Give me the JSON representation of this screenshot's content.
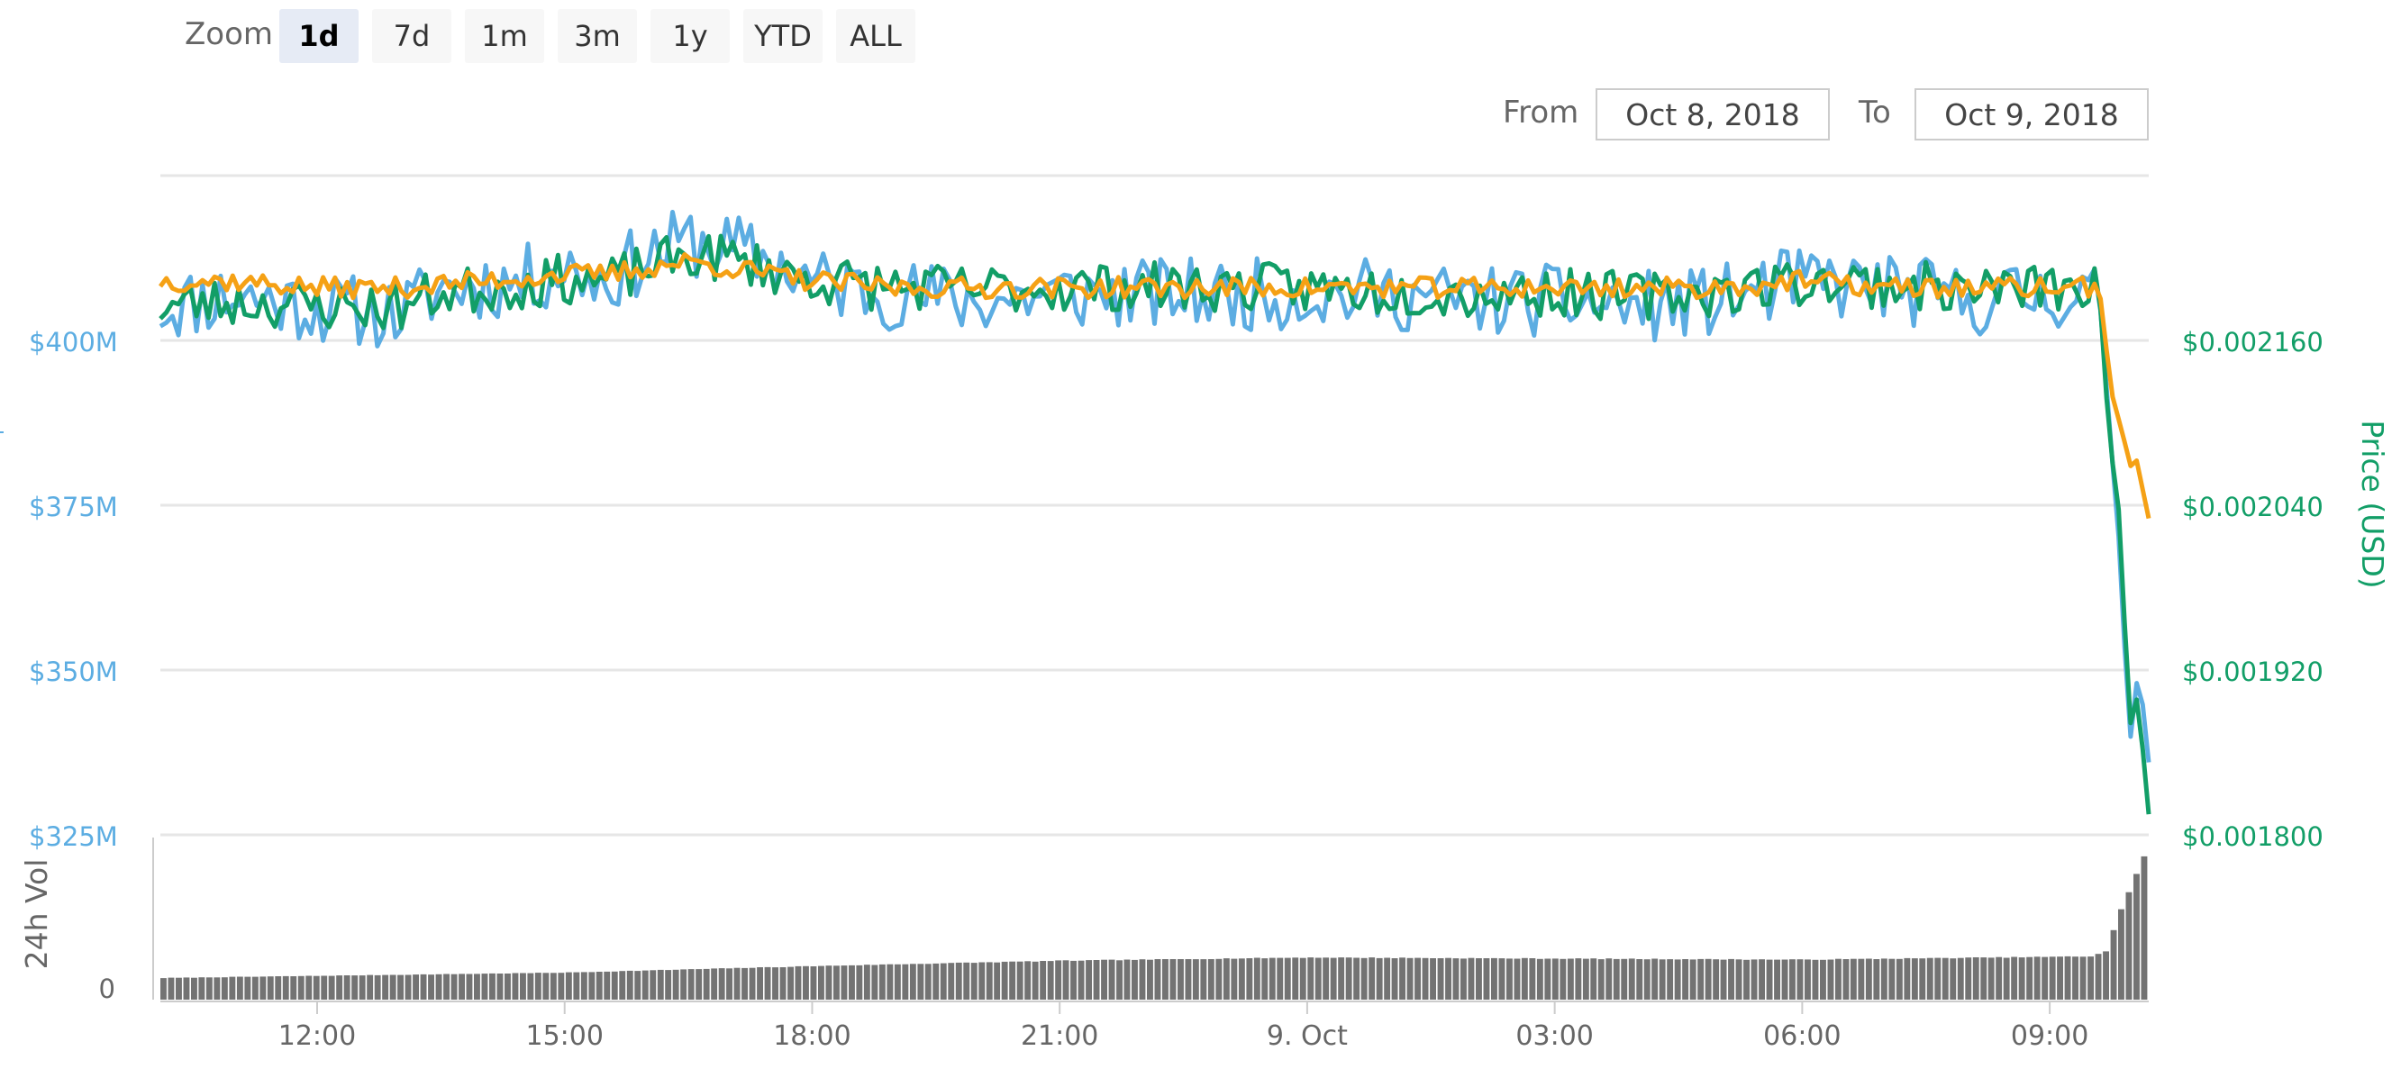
{
  "zoom": {
    "label": "Zoom",
    "buttons": [
      "1d",
      "7d",
      "1m",
      "3m",
      "1y",
      "YTD",
      "ALL"
    ],
    "active": "1d"
  },
  "range": {
    "from_label": "From",
    "from_value": "Oct 8, 2018",
    "to_label": "To",
    "to_value": "Oct 9, 2018"
  },
  "chart_data": {
    "type": "line",
    "title": "",
    "left_axis": {
      "label": "",
      "ticks": [
        "$400M",
        "$375M",
        "$350M",
        "$325M"
      ],
      "values": [
        400,
        375,
        350,
        325
      ],
      "unit": "M USD"
    },
    "right_axis": {
      "label": "Price (USD)",
      "ticks": [
        "$0.002160",
        "$0.002040",
        "$0.001920",
        "$0.001800"
      ],
      "values": [
        0.00216,
        0.00204,
        0.00192,
        0.0018
      ]
    },
    "volume_axis": {
      "label": "24h Vol",
      "ticks": [
        "0"
      ]
    },
    "x_ticks": [
      "12:00",
      "15:00",
      "18:00",
      "21:00",
      "9. Oct",
      "03:00",
      "06:00",
      "09:00"
    ],
    "x_tick_hours": [
      12,
      15,
      18,
      21,
      24,
      27,
      30,
      33
    ],
    "x_range_hours": [
      10.1,
      34.2
    ],
    "grid": true,
    "series": [
      {
        "axis": "left",
        "color": "#5cade2",
        "keypoints": [
          [
            10.1,
            405
          ],
          [
            11.0,
            407
          ],
          [
            12.0,
            405
          ],
          [
            13.0,
            404
          ],
          [
            13.5,
            408
          ],
          [
            14.5,
            409
          ],
          [
            15.0,
            411
          ],
          [
            15.5,
            409
          ],
          [
            16.0,
            413
          ],
          [
            16.5,
            415
          ],
          [
            17.0,
            414
          ],
          [
            17.5,
            412
          ],
          [
            18.0,
            409
          ],
          [
            19.0,
            407
          ],
          [
            20.0,
            406
          ],
          [
            21.0,
            407
          ],
          [
            22.0,
            407
          ],
          [
            23.0,
            407
          ],
          [
            24.0,
            407
          ],
          [
            25.0,
            407
          ],
          [
            26.0,
            406
          ],
          [
            27.0,
            406
          ],
          [
            28.0,
            405
          ],
          [
            29.0,
            406
          ],
          [
            30.0,
            409
          ],
          [
            31.0,
            408
          ],
          [
            32.0,
            406
          ],
          [
            33.0,
            407
          ],
          [
            33.6,
            407
          ],
          [
            33.75,
            383
          ],
          [
            33.85,
            368
          ],
          [
            33.95,
            343
          ],
          [
            34.0,
            338
          ],
          [
            34.05,
            348
          ],
          [
            34.1,
            348
          ],
          [
            34.2,
            336
          ]
        ]
      },
      {
        "axis": "right",
        "color": "#129e67",
        "keypoints": [
          [
            10.1,
            0.002185
          ],
          [
            11.0,
            0.002188
          ],
          [
            12.0,
            0.002185
          ],
          [
            13.0,
            0.002184
          ],
          [
            13.5,
            0.002195
          ],
          [
            14.5,
            0.0022
          ],
          [
            15.0,
            0.002205
          ],
          [
            15.5,
            0.002202
          ],
          [
            16.0,
            0.002213
          ],
          [
            16.5,
            0.002222
          ],
          [
            17.0,
            0.00222
          ],
          [
            17.5,
            0.002212
          ],
          [
            18.0,
            0.002204
          ],
          [
            19.0,
            0.002199
          ],
          [
            20.0,
            0.002197
          ],
          [
            21.0,
            0.002199
          ],
          [
            22.0,
            0.002199
          ],
          [
            23.0,
            0.002199
          ],
          [
            24.0,
            0.002198
          ],
          [
            25.0,
            0.002196
          ],
          [
            26.0,
            0.002194
          ],
          [
            27.0,
            0.002195
          ],
          [
            28.0,
            0.002192
          ],
          [
            29.0,
            0.002196
          ],
          [
            30.0,
            0.002203
          ],
          [
            31.0,
            0.002201
          ],
          [
            32.0,
            0.002197
          ],
          [
            33.0,
            0.002198
          ],
          [
            33.6,
            0.002197
          ],
          [
            33.72,
            0.00209
          ],
          [
            33.85,
            0.00203
          ],
          [
            33.95,
            0.0019
          ],
          [
            34.0,
            0.00187
          ],
          [
            34.05,
            0.0019
          ],
          [
            34.1,
            0.00188
          ],
          [
            34.2,
            0.001815
          ]
        ]
      },
      {
        "axis": "left",
        "color": "#f5a115",
        "keypoints": [
          [
            10.1,
            409
          ],
          [
            11.0,
            409
          ],
          [
            12.0,
            408
          ],
          [
            13.0,
            408
          ],
          [
            14.0,
            409
          ],
          [
            15.0,
            410
          ],
          [
            15.5,
            410
          ],
          [
            16.0,
            411
          ],
          [
            16.5,
            412
          ],
          [
            17.0,
            411
          ],
          [
            17.5,
            410
          ],
          [
            18.0,
            409
          ],
          [
            19.0,
            408
          ],
          [
            20.0,
            408
          ],
          [
            21.0,
            408
          ],
          [
            22.0,
            408
          ],
          [
            23.0,
            408
          ],
          [
            24.0,
            408
          ],
          [
            25.0,
            408
          ],
          [
            26.0,
            408
          ],
          [
            27.0,
            408
          ],
          [
            28.0,
            408
          ],
          [
            29.0,
            408
          ],
          [
            30.0,
            409
          ],
          [
            31.0,
            408
          ],
          [
            32.0,
            408
          ],
          [
            33.0,
            408
          ],
          [
            33.6,
            408
          ],
          [
            33.75,
            392
          ],
          [
            33.9,
            385
          ],
          [
            34.0,
            380
          ],
          [
            34.05,
            382
          ],
          [
            34.2,
            373
          ]
        ]
      }
    ],
    "volume": {
      "color": "#737373",
      "keypoints": [
        [
          10.1,
          0.2
        ],
        [
          12.0,
          0.22
        ],
        [
          15.0,
          0.25
        ],
        [
          18.0,
          0.31
        ],
        [
          21.0,
          0.36
        ],
        [
          24.0,
          0.39
        ],
        [
          27.0,
          0.38
        ],
        [
          30.0,
          0.37
        ],
        [
          33.5,
          0.4
        ],
        [
          33.7,
          0.45
        ],
        [
          33.8,
          0.68
        ],
        [
          33.9,
          0.88
        ],
        [
          34.0,
          1.05
        ],
        [
          34.1,
          1.25
        ],
        [
          34.2,
          1.38
        ]
      ]
    }
  }
}
